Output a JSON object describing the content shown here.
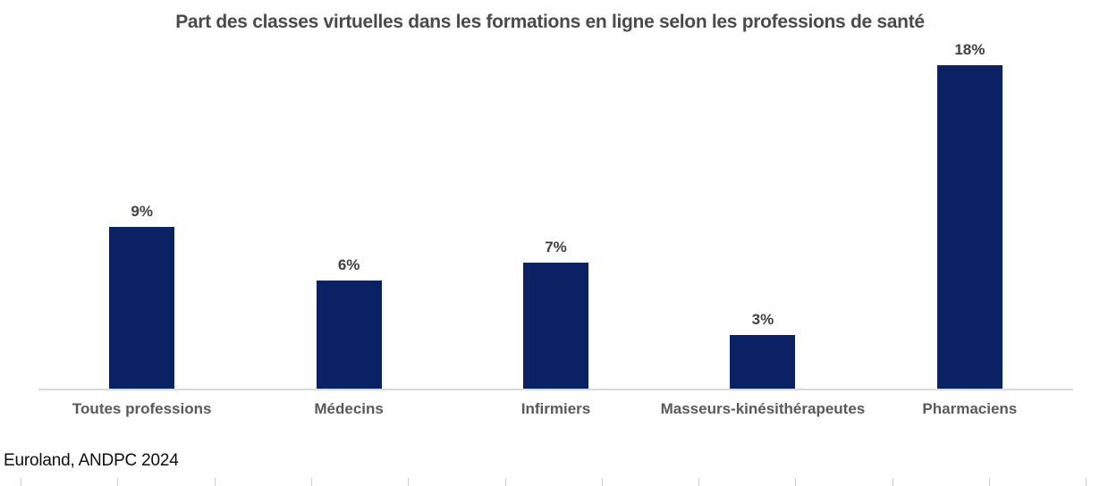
{
  "title": "Part des classes virtuelles dans les formations en ligne selon les professions de santé",
  "source": "Euroland, ANDPC 2024",
  "colors": {
    "bar": "#0a2263",
    "title": "#4a4a4a",
    "value_label": "#404040",
    "category_label": "#595959",
    "axis_line": "#d9d9d9"
  },
  "chart_data": {
    "type": "bar",
    "title": "Part des classes virtuelles dans les formations en ligne selon les professions de santé",
    "categories": [
      "Toutes professions",
      "Médecins",
      "Infirmiers",
      "Masseurs-kinésithérapeutes",
      "Pharmaciens"
    ],
    "values": [
      9,
      6,
      7,
      3,
      18
    ],
    "value_labels": [
      "9%",
      "6%",
      "7%",
      "3%",
      "18%"
    ],
    "xlabel": "",
    "ylabel": "",
    "ylim": [
      0,
      20
    ],
    "grid": false,
    "legend": false,
    "bar_color": "#0a2263",
    "source_note": "Euroland, ANDPC 2024"
  }
}
